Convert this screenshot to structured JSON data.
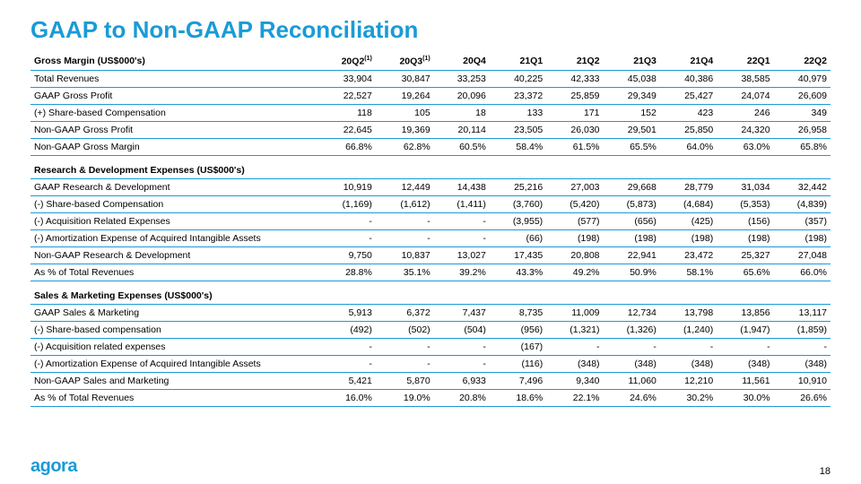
{
  "title": "GAAP to Non-GAAP Reconciliation",
  "logo": "agora",
  "page_number": "18",
  "columns": [
    "20Q2",
    "20Q3",
    "20Q4",
    "21Q1",
    "21Q2",
    "21Q3",
    "21Q4",
    "22Q1",
    "22Q2"
  ],
  "col_footnote_idx": [
    0,
    1
  ],
  "sections": [
    {
      "header": "Gross Margin (US$000's)",
      "rows": [
        {
          "label": "Total Revenues",
          "vals": [
            "33,904",
            "30,847",
            "33,253",
            "40,225",
            "42,333",
            "45,038",
            "40,386",
            "38,585",
            "40,979"
          ]
        },
        {
          "label": "GAAP Gross Profit",
          "vals": [
            "22,527",
            "19,264",
            "20,096",
            "23,372",
            "25,859",
            "29,349",
            "25,427",
            "24,074",
            "26,609"
          ]
        },
        {
          "label": "(+) Share-based Compensation",
          "vals": [
            "118",
            "105",
            "18",
            "133",
            "171",
            "152",
            "423",
            "246",
            "349"
          ]
        },
        {
          "label": "Non-GAAP Gross Profit",
          "vals": [
            "22,645",
            "19,369",
            "20,114",
            "23,505",
            "26,030",
            "29,501",
            "25,850",
            "24,320",
            "26,958"
          ]
        },
        {
          "label": "Non-GAAP Gross Margin",
          "vals": [
            "66.8%",
            "62.8%",
            "60.5%",
            "58.4%",
            "61.5%",
            "65.5%",
            "64.0%",
            "63.0%",
            "65.8%"
          ]
        }
      ]
    },
    {
      "header": "Research & Development Expenses (US$000's)",
      "rows": [
        {
          "label": "GAAP Research & Development",
          "vals": [
            "10,919",
            "12,449",
            "14,438",
            "25,216",
            "27,003",
            "29,668",
            "28,779",
            "31,034",
            "32,442"
          ]
        },
        {
          "label": "(-) Share-based Compensation",
          "vals": [
            "(1,169)",
            "(1,612)",
            "(1,411)",
            "(3,760)",
            "(5,420)",
            "(5,873)",
            "(4,684)",
            "(5,353)",
            "(4,839)"
          ]
        },
        {
          "label": "(-) Acquisition Related Expenses",
          "vals": [
            "-",
            "-",
            "-",
            "(3,955)",
            "(577)",
            "(656)",
            "(425)",
            "(156)",
            "(357)"
          ]
        },
        {
          "label": "(-) Amortization Expense of Acquired Intangible Assets",
          "vals": [
            "-",
            "-",
            "-",
            "(66)",
            "(198)",
            "(198)",
            "(198)",
            "(198)",
            "(198)"
          ]
        },
        {
          "label": "Non-GAAP Research & Development",
          "vals": [
            "9,750",
            "10,837",
            "13,027",
            "17,435",
            "20,808",
            "22,941",
            "23,472",
            "25,327",
            "27,048"
          ]
        },
        {
          "label": "As % of Total Revenues",
          "vals": [
            "28.8%",
            "35.1%",
            "39.2%",
            "43.3%",
            "49.2%",
            "50.9%",
            "58.1%",
            "65.6%",
            "66.0%"
          ]
        }
      ]
    },
    {
      "header": "Sales & Marketing Expenses (US$000's)",
      "rows": [
        {
          "label": "GAAP Sales & Marketing",
          "vals": [
            "5,913",
            "6,372",
            "7,437",
            "8,735",
            "11,009",
            "12,734",
            "13,798",
            "13,856",
            "13,117"
          ]
        },
        {
          "label": "(-) Share-based compensation",
          "vals": [
            "(492)",
            "(502)",
            "(504)",
            "(956)",
            "(1,321)",
            "(1,326)",
            "(1,240)",
            "(1,947)",
            "(1,859)"
          ]
        },
        {
          "label": "(-) Acquisition related expenses",
          "vals": [
            "-",
            "-",
            "-",
            "(167)",
            "-",
            "-",
            "-",
            "-",
            "-"
          ]
        },
        {
          "label": "(-) Amortization Expense of Acquired Intangible Assets",
          "vals": [
            "-",
            "-",
            "-",
            "(116)",
            "(348)",
            "(348)",
            "(348)",
            "(348)",
            "(348)"
          ]
        },
        {
          "label": "Non-GAAP Sales and Marketing",
          "vals": [
            "5,421",
            "5,870",
            "6,933",
            "7,496",
            "9,340",
            "11,060",
            "12,210",
            "11,561",
            "10,910"
          ]
        },
        {
          "label": "As % of Total Revenues",
          "vals": [
            "16.0%",
            "19.0%",
            "20.8%",
            "18.6%",
            "22.1%",
            "24.6%",
            "30.2%",
            "30.0%",
            "26.6%"
          ]
        }
      ]
    }
  ]
}
